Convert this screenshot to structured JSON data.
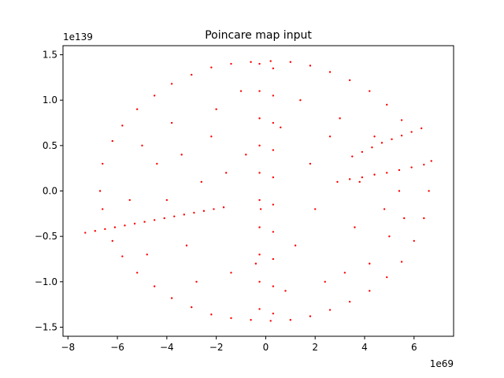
{
  "chart_data": {
    "type": "scatter",
    "title": "Poincare map input",
    "xlabel": "",
    "ylabel": "",
    "x_offset_label": "1e69",
    "y_offset_label": "1e139",
    "xlim": [
      -8.2,
      7.6
    ],
    "ylim": [
      -1.6,
      1.6
    ],
    "x_ticks": [
      -8,
      -6,
      -4,
      -2,
      0,
      2,
      4,
      6
    ],
    "x_tick_labels": [
      "−8",
      "−6",
      "−4",
      "−2",
      "0",
      "2",
      "4",
      "6"
    ],
    "y_ticks": [
      -1.5,
      -1.0,
      -0.5,
      0.0,
      0.5,
      1.0,
      1.5
    ],
    "y_tick_labels": [
      "−1.5",
      "−1.0",
      "−0.5",
      "0.0",
      "0.5",
      "1.0",
      "1.5"
    ],
    "grid": false,
    "marker_color": "#ff0000",
    "series": [
      {
        "points": [
          [
            -7.3,
            -0.46
          ],
          [
            -6.9,
            -0.44
          ],
          [
            -6.5,
            -0.42
          ],
          [
            -6.1,
            -0.4
          ],
          [
            -5.7,
            -0.38
          ],
          [
            -5.3,
            -0.36
          ],
          [
            -4.9,
            -0.34
          ],
          [
            -4.5,
            -0.32
          ],
          [
            -4.1,
            -0.3
          ],
          [
            -3.7,
            -0.28
          ],
          [
            -3.3,
            -0.26
          ],
          [
            -2.9,
            -0.24
          ],
          [
            -2.5,
            -0.22
          ],
          [
            -2.1,
            -0.2
          ],
          [
            -1.7,
            -0.18
          ],
          [
            2.9,
            0.1
          ],
          [
            3.4,
            0.13
          ],
          [
            3.9,
            0.15
          ],
          [
            4.4,
            0.18
          ],
          [
            4.9,
            0.2
          ],
          [
            5.4,
            0.23
          ],
          [
            5.9,
            0.26
          ],
          [
            6.4,
            0.29
          ],
          [
            6.7,
            0.33
          ],
          [
            3.5,
            0.38
          ],
          [
            3.9,
            0.43
          ],
          [
            4.3,
            0.48
          ],
          [
            4.7,
            0.53
          ],
          [
            5.1,
            0.57
          ],
          [
            5.5,
            0.61
          ],
          [
            5.9,
            0.65
          ],
          [
            6.3,
            0.69
          ],
          [
            -0.25,
            1.4
          ],
          [
            -0.25,
            1.1
          ],
          [
            -0.25,
            0.8
          ],
          [
            -0.25,
            0.5
          ],
          [
            -0.25,
            0.2
          ],
          [
            -0.25,
            -0.1
          ],
          [
            -0.25,
            -0.4
          ],
          [
            -0.25,
            -0.7
          ],
          [
            -0.25,
            -1.0
          ],
          [
            -0.25,
            -1.3
          ],
          [
            0.3,
            1.35
          ],
          [
            0.3,
            1.05
          ],
          [
            0.3,
            0.75
          ],
          [
            0.3,
            0.45
          ],
          [
            0.3,
            0.15
          ],
          [
            0.3,
            -0.15
          ],
          [
            0.3,
            -0.45
          ],
          [
            0.3,
            -0.75
          ],
          [
            0.3,
            -1.05
          ],
          [
            0.3,
            -1.35
          ],
          [
            -6.2,
            0.55
          ],
          [
            -5.8,
            0.72
          ],
          [
            -5.2,
            0.9
          ],
          [
            -4.5,
            1.05
          ],
          [
            -3.8,
            1.18
          ],
          [
            -3.0,
            1.28
          ],
          [
            -2.2,
            1.36
          ],
          [
            -1.4,
            1.4
          ],
          [
            -0.6,
            1.42
          ],
          [
            0.2,
            1.43
          ],
          [
            1.0,
            1.42
          ],
          [
            1.8,
            1.38
          ],
          [
            2.6,
            1.31
          ],
          [
            3.4,
            1.22
          ],
          [
            4.2,
            1.1
          ],
          [
            4.9,
            0.95
          ],
          [
            5.5,
            0.78
          ],
          [
            -6.6,
            0.3
          ],
          [
            -6.7,
            0.0
          ],
          [
            -6.6,
            -0.2
          ],
          [
            -6.2,
            -0.55
          ],
          [
            -5.8,
            -0.72
          ],
          [
            -5.2,
            -0.9
          ],
          [
            -4.5,
            -1.05
          ],
          [
            -3.8,
            -1.18
          ],
          [
            -3.0,
            -1.28
          ],
          [
            -2.2,
            -1.36
          ],
          [
            -1.4,
            -1.4
          ],
          [
            -0.6,
            -1.42
          ],
          [
            0.2,
            -1.43
          ],
          [
            1.0,
            -1.42
          ],
          [
            1.8,
            -1.38
          ],
          [
            2.6,
            -1.31
          ],
          [
            3.4,
            -1.22
          ],
          [
            4.2,
            -1.1
          ],
          [
            4.9,
            -0.95
          ],
          [
            5.5,
            -0.78
          ],
          [
            6.0,
            -0.55
          ],
          [
            6.4,
            -0.3
          ],
          [
            6.6,
            0.0
          ],
          [
            -5.0,
            0.5
          ],
          [
            -4.4,
            0.3
          ],
          [
            -3.8,
            0.75
          ],
          [
            -3.2,
            -0.6
          ],
          [
            -2.6,
            0.1
          ],
          [
            -2.0,
            0.9
          ],
          [
            -1.4,
            -0.9
          ],
          [
            -0.8,
            0.4
          ],
          [
            -0.2,
            -0.2
          ],
          [
            0.6,
            0.7
          ],
          [
            1.2,
            -0.6
          ],
          [
            1.8,
            0.3
          ],
          [
            2.4,
            -1.0
          ],
          [
            3.0,
            0.8
          ],
          [
            3.6,
            -0.4
          ],
          [
            4.2,
            -0.8
          ],
          [
            4.8,
            -0.2
          ],
          [
            5.4,
            0.0
          ],
          [
            -5.5,
            -0.1
          ],
          [
            -4.8,
            -0.7
          ],
          [
            -4.0,
            -0.1
          ],
          [
            -3.4,
            0.4
          ],
          [
            -2.8,
            -1.0
          ],
          [
            -2.2,
            0.6
          ],
          [
            -1.6,
            0.2
          ],
          [
            -1.0,
            1.1
          ],
          [
            -0.4,
            -0.8
          ],
          [
            0.8,
            -1.1
          ],
          [
            1.4,
            1.0
          ],
          [
            2.0,
            -0.2
          ],
          [
            2.6,
            0.6
          ],
          [
            3.2,
            -0.9
          ],
          [
            3.8,
            0.1
          ],
          [
            4.4,
            0.6
          ],
          [
            5.0,
            -0.5
          ],
          [
            5.6,
            -0.3
          ]
        ]
      }
    ]
  }
}
